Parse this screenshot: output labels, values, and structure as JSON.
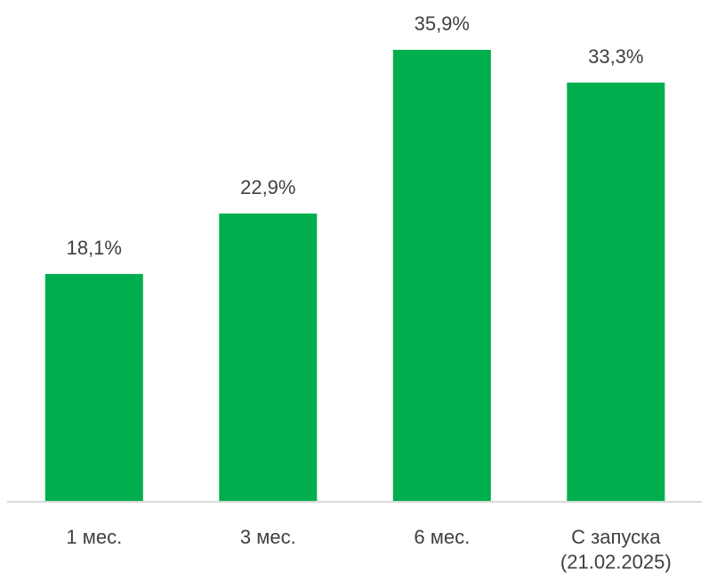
{
  "chart_data": {
    "type": "bar",
    "categories": [
      "1 мес.",
      "3 мес.",
      "6 мес.",
      "С запуска (21.02.2025)"
    ],
    "category_lines": [
      [
        "1 мес."
      ],
      [
        "3 мес."
      ],
      [
        "6 мес."
      ],
      [
        "С запуска",
        "(21.02.2025)"
      ]
    ],
    "values": [
      18.1,
      22.9,
      35.9,
      33.3
    ],
    "value_labels": [
      "18,1%",
      "22,9%",
      "35,9%",
      "33,3%"
    ],
    "title": "",
    "xlabel": "",
    "ylabel": "",
    "ylim": [
      0,
      40
    ],
    "grid": false,
    "bar_color": "#00AE4D",
    "axis_color": "#D9D9D9",
    "text_color": "#404040"
  }
}
